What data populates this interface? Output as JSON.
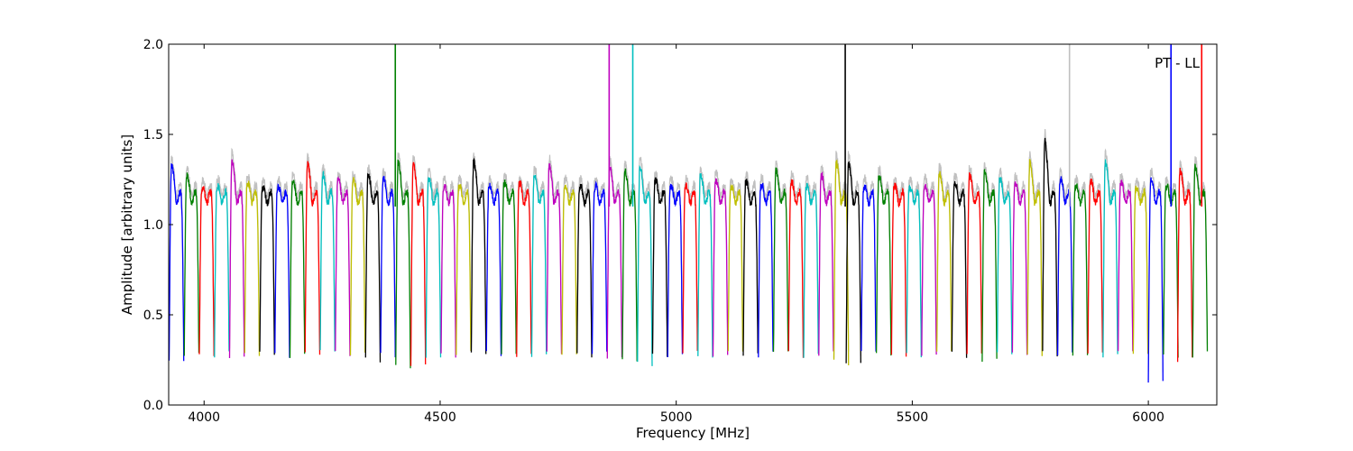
{
  "chart_data": {
    "type": "line",
    "title": "",
    "xlabel": "Frequency [MHz]",
    "ylabel": "Amplitude [arbitrary units]",
    "xlim": [
      3925,
      6145
    ],
    "ylim": [
      0.0,
      2.0
    ],
    "xticks": [
      4000,
      4500,
      5000,
      5500,
      6000
    ],
    "yticks": [
      0.0,
      0.5,
      1.0,
      1.5,
      2.0
    ],
    "ytick_labels": [
      "0.0",
      "0.5",
      "1.0",
      "1.5",
      "2.0"
    ],
    "grid": false,
    "annotation": "PT - LL",
    "colors": [
      "#0000ff",
      "#008000",
      "#ff0000",
      "#00bfbf",
      "#bf00bf",
      "#bfbf00",
      "#000000"
    ],
    "reference_color": "#c0c0c0",
    "channel_width_mhz": 32,
    "channels": [
      {
        "start": 3926,
        "color": "#0000ff",
        "peak": 1.33,
        "dip": 0.24
      },
      {
        "start": 3958,
        "color": "#008000",
        "peak": 1.27,
        "dip": 0.28
      },
      {
        "start": 3990,
        "color": "#ff0000",
        "peak": 1.19,
        "dip": 0.28
      },
      {
        "start": 4022,
        "color": "#00bfbf",
        "peak": 1.2,
        "dip": 0.28
      },
      {
        "start": 4054,
        "color": "#bf00bf",
        "peak": 1.36,
        "dip": 0.28
      },
      {
        "start": 4086,
        "color": "#bfbf00",
        "peak": 1.22,
        "dip": 0.28
      },
      {
        "start": 4118,
        "color": "#000000",
        "peak": 1.19,
        "dip": 0.28
      },
      {
        "start": 4150,
        "color": "#0000ff",
        "peak": 1.2,
        "dip": 0.28
      },
      {
        "start": 4182,
        "color": "#008000",
        "peak": 1.23,
        "dip": 0.28
      },
      {
        "start": 4214,
        "color": "#ff0000",
        "peak": 1.34,
        "dip": 0.28
      },
      {
        "start": 4246,
        "color": "#00bfbf",
        "peak": 1.28,
        "dip": 0.29
      },
      {
        "start": 4278,
        "color": "#bf00bf",
        "peak": 1.24,
        "dip": 0.28
      },
      {
        "start": 4310,
        "color": "#bfbf00",
        "peak": 1.24,
        "dip": 0.28
      },
      {
        "start": 4342,
        "color": "#000000",
        "peak": 1.27,
        "dip": 0.25
      },
      {
        "start": 4374,
        "color": "#0000ff",
        "peak": 1.25,
        "dip": 0.28
      },
      {
        "start": 4406,
        "color": "#008000",
        "peak": 1.35,
        "dip": 0.21
      },
      {
        "start": 4438,
        "color": "#ff0000",
        "peak": 1.34,
        "dip": 0.23
      },
      {
        "start": 4470,
        "color": "#00bfbf",
        "peak": 1.25,
        "dip": 0.28
      },
      {
        "start": 4502,
        "color": "#bf00bf",
        "peak": 1.2,
        "dip": 0.28
      },
      {
        "start": 4534,
        "color": "#bfbf00",
        "peak": 1.2,
        "dip": 0.28
      },
      {
        "start": 4566,
        "color": "#000000",
        "peak": 1.35,
        "dip": 0.28
      },
      {
        "start": 4598,
        "color": "#0000ff",
        "peak": 1.2,
        "dip": 0.28
      },
      {
        "start": 4630,
        "color": "#008000",
        "peak": 1.22,
        "dip": 0.28
      },
      {
        "start": 4662,
        "color": "#ff0000",
        "peak": 1.22,
        "dip": 0.28
      },
      {
        "start": 4694,
        "color": "#00bfbf",
        "peak": 1.27,
        "dip": 0.28
      },
      {
        "start": 4726,
        "color": "#bf00bf",
        "peak": 1.33,
        "dip": 0.28
      },
      {
        "start": 4758,
        "color": "#bfbf00",
        "peak": 1.2,
        "dip": 0.28
      },
      {
        "start": 4790,
        "color": "#000000",
        "peak": 1.2,
        "dip": 0.28
      },
      {
        "start": 4822,
        "color": "#0000ff",
        "peak": 1.2,
        "dip": 0.28
      },
      {
        "start": 4854,
        "color": "#bf00bf",
        "peak": 1.32,
        "dip": 0.25
      },
      {
        "start": 4886,
        "color": "#008000",
        "peak": 1.3,
        "dip": 0.26
      },
      {
        "start": 4918,
        "color": "#00bfbf",
        "peak": 1.33,
        "dip": 0.23
      },
      {
        "start": 4950,
        "color": "#000000",
        "peak": 1.24,
        "dip": 0.28
      },
      {
        "start": 4982,
        "color": "#0000ff",
        "peak": 1.2,
        "dip": 0.28
      },
      {
        "start": 5014,
        "color": "#ff0000",
        "peak": 1.2,
        "dip": 0.28
      },
      {
        "start": 5046,
        "color": "#00bfbf",
        "peak": 1.27,
        "dip": 0.28
      },
      {
        "start": 5078,
        "color": "#bf00bf",
        "peak": 1.24,
        "dip": 0.28
      },
      {
        "start": 5110,
        "color": "#bfbf00",
        "peak": 1.19,
        "dip": 0.28
      },
      {
        "start": 5142,
        "color": "#000000",
        "peak": 1.23,
        "dip": 0.28
      },
      {
        "start": 5174,
        "color": "#0000ff",
        "peak": 1.21,
        "dip": 0.28
      },
      {
        "start": 5206,
        "color": "#008000",
        "peak": 1.3,
        "dip": 0.28
      },
      {
        "start": 5238,
        "color": "#ff0000",
        "peak": 1.23,
        "dip": 0.28
      },
      {
        "start": 5270,
        "color": "#00bfbf",
        "peak": 1.2,
        "dip": 0.28
      },
      {
        "start": 5302,
        "color": "#bf00bf",
        "peak": 1.27,
        "dip": 0.28
      },
      {
        "start": 5334,
        "color": "#bfbf00",
        "peak": 1.35,
        "dip": 0.24
      },
      {
        "start": 5360,
        "color": "#000000",
        "peak": 1.35,
        "dip": 0.24
      },
      {
        "start": 5392,
        "color": "#0000ff",
        "peak": 1.2,
        "dip": 0.28
      },
      {
        "start": 5424,
        "color": "#008000",
        "peak": 1.26,
        "dip": 0.28
      },
      {
        "start": 5456,
        "color": "#ff0000",
        "peak": 1.2,
        "dip": 0.28
      },
      {
        "start": 5488,
        "color": "#00bfbf",
        "peak": 1.19,
        "dip": 0.28
      },
      {
        "start": 5520,
        "color": "#bf00bf",
        "peak": 1.2,
        "dip": 0.28
      },
      {
        "start": 5552,
        "color": "#bfbf00",
        "peak": 1.28,
        "dip": 0.28
      },
      {
        "start": 5584,
        "color": "#000000",
        "peak": 1.22,
        "dip": 0.28
      },
      {
        "start": 5616,
        "color": "#ff0000",
        "peak": 1.27,
        "dip": 0.28
      },
      {
        "start": 5648,
        "color": "#008000",
        "peak": 1.29,
        "dip": 0.25
      },
      {
        "start": 5680,
        "color": "#00bfbf",
        "peak": 1.25,
        "dip": 0.28
      },
      {
        "start": 5712,
        "color": "#bf00bf",
        "peak": 1.22,
        "dip": 0.28
      },
      {
        "start": 5744,
        "color": "#bfbf00",
        "peak": 1.35,
        "dip": 0.28
      },
      {
        "start": 5776,
        "color": "#000000",
        "peak": 1.48,
        "dip": 0.28
      },
      {
        "start": 5808,
        "color": "#0000ff",
        "peak": 1.25,
        "dip": 0.28
      },
      {
        "start": 5840,
        "color": "#008000",
        "peak": 1.2,
        "dip": 0.28
      },
      {
        "start": 5872,
        "color": "#ff0000",
        "peak": 1.23,
        "dip": 0.28
      },
      {
        "start": 5904,
        "color": "#00bfbf",
        "peak": 1.35,
        "dip": 0.28
      },
      {
        "start": 5936,
        "color": "#bf00bf",
        "peak": 1.22,
        "dip": 0.28
      },
      {
        "start": 5968,
        "color": "#bfbf00",
        "peak": 1.19,
        "dip": 0.28
      },
      {
        "start": 6000,
        "color": "#0000ff",
        "peak": 1.25,
        "dip": 0.14
      },
      {
        "start": 6032,
        "color": "#008000",
        "peak": 1.2,
        "dip": 0.28
      },
      {
        "start": 6062,
        "color": "#ff0000",
        "peak": 1.3,
        "dip": 0.25
      },
      {
        "start": 6094,
        "color": "#008000",
        "peak": 1.33,
        "dip": 0.28
      }
    ],
    "spikes": [
      {
        "x": 4405,
        "y": 2.0,
        "color": "#008000"
      },
      {
        "x": 4858,
        "y": 2.0,
        "color": "#bf00bf"
      },
      {
        "x": 4908,
        "y": 2.0,
        "color": "#00bfbf"
      },
      {
        "x": 5358,
        "y": 2.0,
        "color": "#000000"
      },
      {
        "x": 5833,
        "y": 2.0,
        "color": "#c0c0c0"
      },
      {
        "x": 6048,
        "y": 2.0,
        "color": "#0000ff"
      },
      {
        "x": 6113,
        "y": 2.0,
        "color": "#ff0000"
      }
    ]
  }
}
